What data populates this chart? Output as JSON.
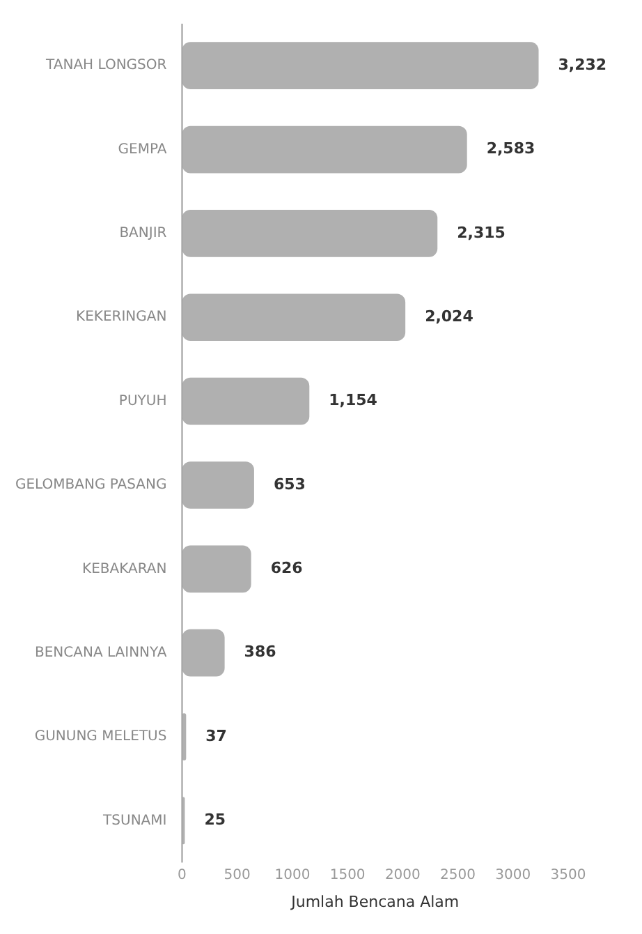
{
  "chart_data": {
    "type": "bar",
    "orientation": "horizontal",
    "xlabel": "Jumlah Bencana Alam",
    "categories": [
      "TANAH LONGSOR",
      "GEMPA",
      "BANJIR",
      "KEKERINGAN",
      "PUYUH",
      "GELOMBANG PASANG",
      "KEBAKARAN",
      "BENCANA LAINNYA",
      "GUNUNG MELETUS",
      "TSUNAMI"
    ],
    "values": [
      3232,
      2583,
      2315,
      2024,
      1154,
      653,
      626,
      386,
      37,
      25
    ],
    "value_labels": [
      "3,232",
      "2,583",
      "2,315",
      "2,024",
      "1,154",
      "653",
      "626",
      "386",
      "37",
      "25"
    ],
    "color": "#b0b0b0",
    "xlim": [
      0,
      3500
    ],
    "xticks": [
      0,
      500,
      1000,
      1500,
      2000,
      2500,
      3000,
      3500
    ],
    "grid": false,
    "legend": false
  }
}
